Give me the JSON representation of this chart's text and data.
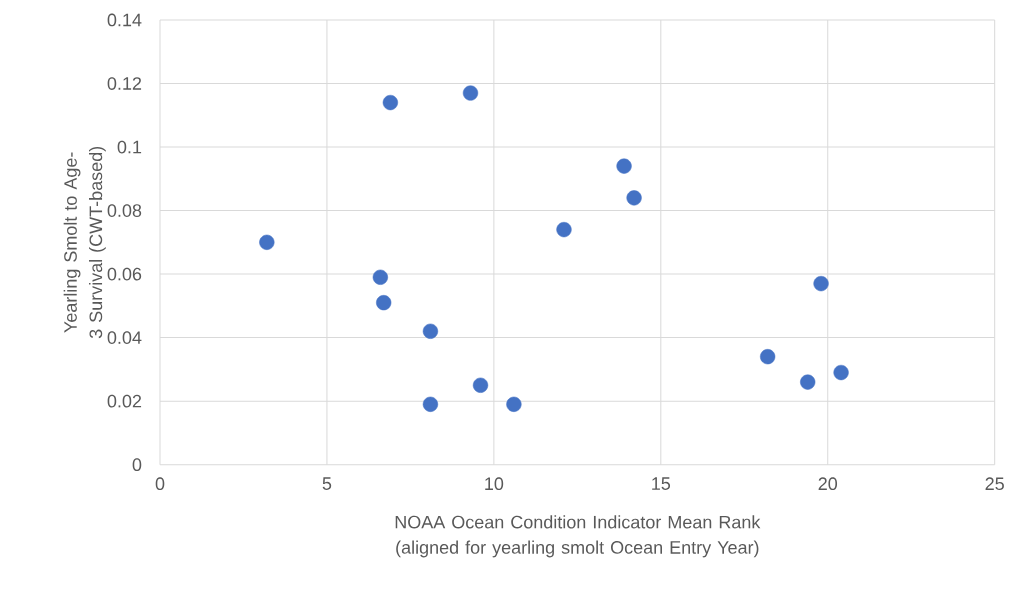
{
  "chart_data": {
    "type": "scatter",
    "xlabel": "NOAA Ocean Condition Indicator Mean Rank (aligned for yearling smolt Ocean Entry Year)",
    "ylabel": "Yearling Smolt to Age-3 Survival (CWT-based)",
    "x": [
      3.2,
      6.9,
      9.3,
      13.9,
      14.2,
      12.1,
      6.6,
      6.7,
      8.1,
      8.1,
      9.6,
      10.6,
      18.2,
      19.4,
      19.8,
      20.4
    ],
    "values": [
      0.07,
      0.114,
      0.117,
      0.094,
      0.084,
      0.074,
      0.059,
      0.051,
      0.042,
      0.019,
      0.025,
      0.019,
      0.034,
      0.026,
      0.057,
      0.029
    ],
    "color": "#4472c4",
    "marker": "circle",
    "xlim": [
      0,
      25
    ],
    "xticks": [
      0,
      5,
      10,
      15,
      20,
      25
    ],
    "ylim": [
      0,
      0.14
    ],
    "yticks": [
      0,
      0.02,
      0.04,
      0.06,
      0.08,
      0.1,
      0.12,
      0.14
    ],
    "grid": true
  }
}
